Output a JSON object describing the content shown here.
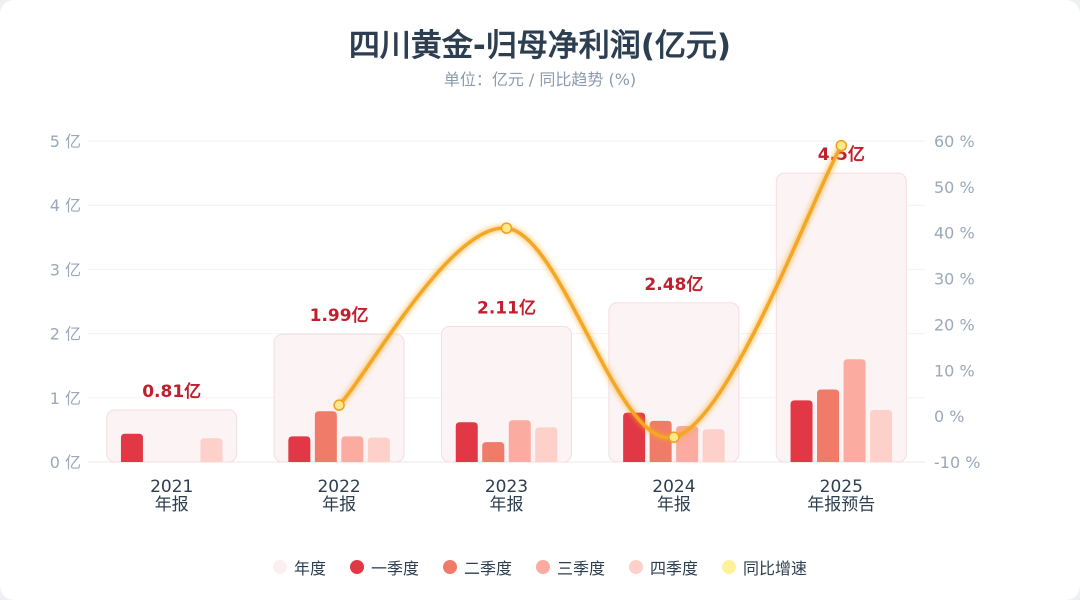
{
  "chart_data": {
    "type": "bar",
    "title": "四川黄金-归母净利润(亿元)",
    "subtitle": "单位：亿元 / 同比趋势 (%)",
    "categories": [
      [
        "2021",
        "年报"
      ],
      [
        "2022",
        "年报"
      ],
      [
        "2023",
        "年报"
      ],
      [
        "2024",
        "年报"
      ],
      [
        "2025",
        "年报预告"
      ]
    ],
    "annual": [
      0.81,
      1.99,
      2.11,
      2.48,
      4.5
    ],
    "annual_labels": [
      "0.81亿",
      "1.99亿",
      "2.11亿",
      "2.48亿",
      "4.5亿"
    ],
    "series": [
      {
        "name": "一季度",
        "color": "#e23744",
        "values": [
          0.44,
          0.4,
          0.62,
          0.77,
          0.96
        ]
      },
      {
        "name": "二季度",
        "color": "#f07b68",
        "values": [
          null,
          0.79,
          0.31,
          0.64,
          1.13
        ]
      },
      {
        "name": "三季度",
        "color": "#fbaba0",
        "values": [
          null,
          0.4,
          0.65,
          0.56,
          1.6
        ]
      },
      {
        "name": "四季度",
        "color": "#fdd0c9",
        "values": [
          0.37,
          0.38,
          0.54,
          0.51,
          0.81
        ]
      }
    ],
    "yoy": {
      "name": "同比增速",
      "color": "#f5a623",
      "values": [
        null,
        2.4,
        41,
        -4.6,
        59
      ]
    },
    "annual_name": "年度",
    "yleft": {
      "ticks": [
        "0 亿",
        "1 亿",
        "2 亿",
        "3 亿",
        "4 亿",
        "5 亿"
      ],
      "range": [
        0,
        5
      ]
    },
    "yright": {
      "ticks": [
        "-10 %",
        "0 %",
        "10 %",
        "20 %",
        "30 %",
        "40 %",
        "50 %",
        "60 %"
      ],
      "range": [
        -10,
        60
      ]
    },
    "legend_position": "bottom",
    "grid": true
  },
  "legend": [
    {
      "label": "年度",
      "color": "#fbeff1"
    },
    {
      "label": "一季度",
      "color": "#e23744"
    },
    {
      "label": "二季度",
      "color": "#f07b68"
    },
    {
      "label": "三季度",
      "color": "#fbaba0"
    },
    {
      "label": "四季度",
      "color": "#fdd0c9"
    },
    {
      "label": "同比增速",
      "color": "#fdf19a"
    }
  ]
}
